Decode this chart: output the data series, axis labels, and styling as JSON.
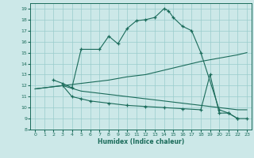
{
  "xlabel": "Humidex (Indice chaleur)",
  "xlim": [
    -0.5,
    23.5
  ],
  "ylim": [
    8,
    19.5
  ],
  "xticks": [
    0,
    1,
    2,
    3,
    4,
    5,
    6,
    7,
    8,
    9,
    10,
    11,
    12,
    13,
    14,
    15,
    16,
    17,
    18,
    19,
    20,
    21,
    22,
    23
  ],
  "yticks": [
    8,
    9,
    10,
    11,
    12,
    13,
    14,
    15,
    16,
    17,
    18,
    19
  ],
  "background_color": "#cce8e8",
  "grid_color": "#99cccc",
  "line_color": "#1a6b5a",
  "lines": [
    {
      "x": [
        2,
        3,
        4,
        5,
        7,
        8,
        9,
        10,
        11,
        12,
        13,
        14,
        14.5,
        15,
        16,
        17,
        18,
        20,
        21,
        22,
        23
      ],
      "y": [
        12.5,
        12.2,
        11.8,
        15.3,
        15.3,
        16.5,
        15.8,
        17.2,
        17.9,
        18.0,
        18.2,
        19.0,
        18.8,
        18.2,
        17.4,
        17.0,
        15.0,
        9.8,
        9.5,
        9.0,
        9.0
      ],
      "markers": true
    },
    {
      "x": [
        0,
        3,
        5,
        8,
        10,
        12,
        14,
        15,
        16,
        18,
        20,
        22,
        23
      ],
      "y": [
        11.7,
        12.0,
        12.2,
        12.5,
        12.8,
        13.0,
        13.4,
        13.6,
        13.8,
        14.2,
        14.5,
        14.8,
        15.0
      ],
      "markers": false
    },
    {
      "x": [
        0,
        3,
        5,
        8,
        10,
        12,
        14,
        16,
        18,
        20,
        22,
        23
      ],
      "y": [
        11.7,
        12.0,
        11.5,
        11.2,
        11.0,
        10.8,
        10.6,
        10.4,
        10.2,
        10.0,
        9.8,
        9.8
      ],
      "markers": false
    },
    {
      "x": [
        3,
        4,
        5,
        6,
        8,
        10,
        12,
        14,
        16,
        18,
        19,
        20,
        21,
        22
      ],
      "y": [
        12.0,
        11.0,
        10.8,
        10.6,
        10.4,
        10.2,
        10.1,
        10.0,
        9.9,
        9.8,
        13.0,
        9.5,
        9.5,
        9.0
      ],
      "markers": true
    }
  ]
}
